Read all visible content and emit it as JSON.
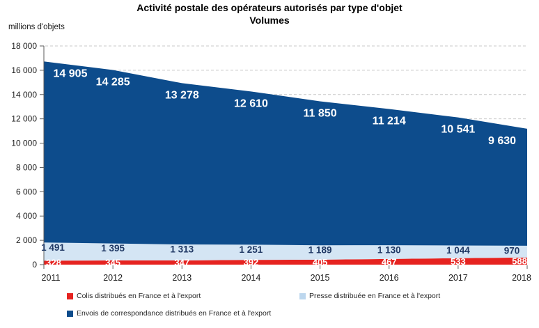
{
  "chart_data": {
    "type": "area",
    "stacked": true,
    "title": "Activité postale des opérateurs autorisés par type d'objet",
    "subtitle": "Volumes",
    "ylabel": "millions d'objets",
    "xlabel": "",
    "categories": [
      "2011",
      "2012",
      "2013",
      "2014",
      "2015",
      "2016",
      "2017",
      "2018"
    ],
    "series": [
      {
        "name": "Colis distribués en France et à l'export",
        "color": "#e62320",
        "label_color": "#ffffff",
        "values": [
          328,
          345,
          347,
          392,
          405,
          467,
          533,
          588
        ]
      },
      {
        "name": "Presse distribuée en France et à l'export",
        "color": "#d4e5f4",
        "label_color": "#1f3864",
        "values": [
          1491,
          1395,
          1313,
          1251,
          1189,
          1130,
          1044,
          970
        ]
      },
      {
        "name": "Envois de correspondance distribués en France et à l'export",
        "color": "#0d4c8c",
        "label_color": "#ffffff",
        "values": [
          14905,
          14285,
          13278,
          12610,
          11850,
          11214,
          10541,
          9630
        ]
      }
    ],
    "ylim": [
      0,
      18000
    ],
    "ytick_step": 2000,
    "ytick_labels": [
      "0",
      "2 000",
      "4 000",
      "6 000",
      "8 000",
      "10 000",
      "12 000",
      "14 000",
      "16 000",
      "18 000"
    ],
    "grid": "horizontal-dashed",
    "legend_position": "bottom"
  },
  "legend": {
    "items": [
      {
        "label": "Colis distribués en France et à l'export",
        "color": "#e62320"
      },
      {
        "label": "Presse distribuée en France et à l'export",
        "color": "#bdd7ee"
      },
      {
        "label": "Envois de correspondance distribués en France et à l'export",
        "color": "#0d4c8c"
      }
    ]
  },
  "colors": {
    "axis_line": "#595959",
    "gridline": "#c9c9c9",
    "axis_text": "#1a1a1a"
  }
}
